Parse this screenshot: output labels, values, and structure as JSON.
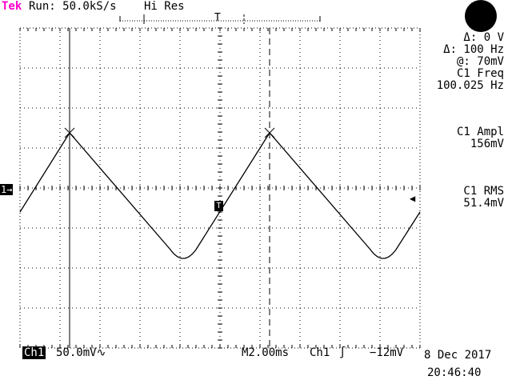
{
  "header": {
    "brand": "Tek",
    "run_status": "Run: 50.0kS/s",
    "acq_mode": "Hi Res",
    "record_marker": "T"
  },
  "readouts": {
    "delta_v": "Δ: 0 V",
    "delta_f": "Δ: 100 Hz",
    "at_v": "@: 70mV",
    "freq_label": "C1 Freq",
    "freq_value": "100.025 Hz",
    "ampl_label": "C1 Ampl",
    "ampl_value": "156mV",
    "rms_label": "C1 RMS",
    "rms_value": "51.4mV"
  },
  "markers": {
    "channel": "1→",
    "trigger": "T"
  },
  "footer": {
    "channel_badge": "Ch1",
    "channel_scale": "50.0mV∿",
    "timebase": "M2.00ms",
    "trigger_source": "Ch1",
    "trigger_slope": "∫",
    "trigger_level": "−12mV",
    "date": "8 Dec 2017",
    "time": "20:46:40"
  },
  "colors": {
    "brand": "#ff00cc",
    "trace": "#000000",
    "background": "#ffffff"
  }
}
